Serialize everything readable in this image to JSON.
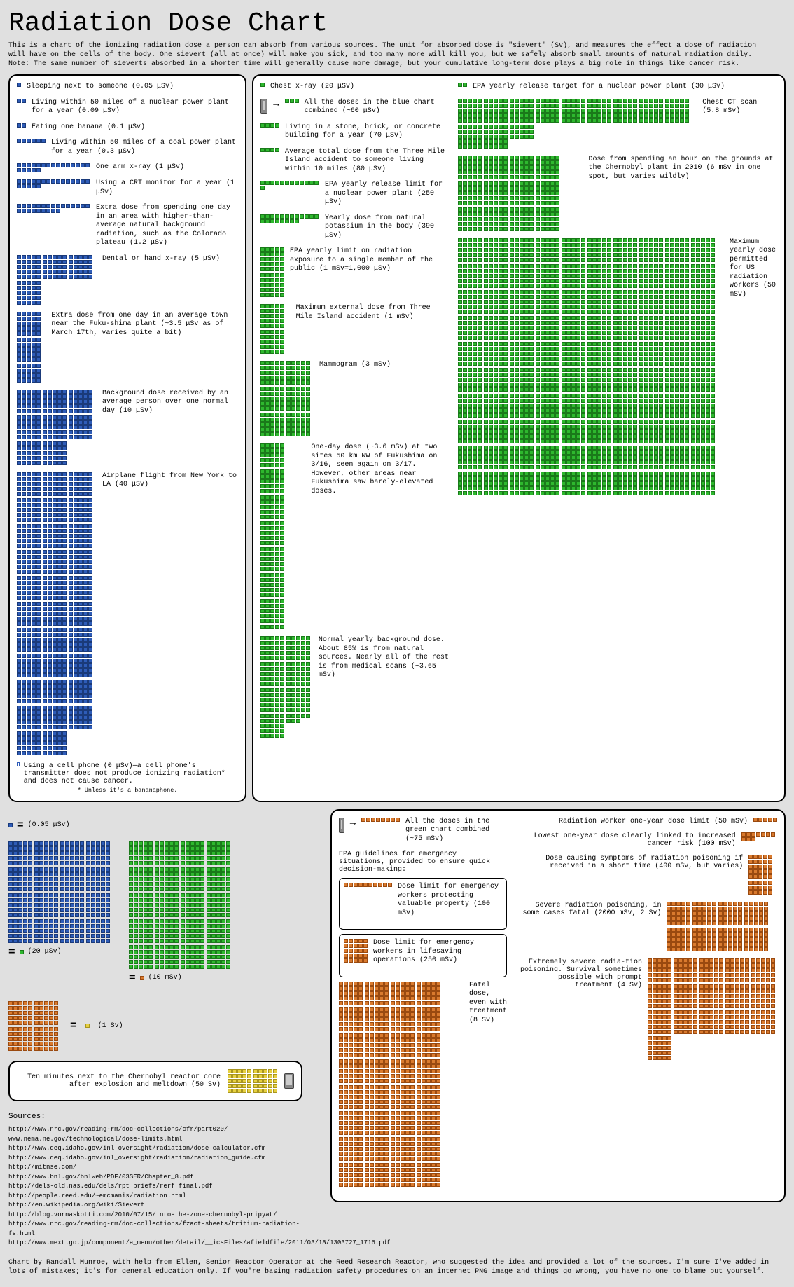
{
  "title": "Radiation Dose Chart",
  "intro": "This is a chart of the ionizing radiation dose a person can absorb from various sources. The unit for absorbed dose is \"sievert\" (Sv), and measures the effect a dose of radiation will have on the cells of the body. One sievert (all at once) will make you sick, and too many more will kill you, but we safely absorb small amounts of natural radiation daily. Note: The same number of sieverts absorbed in a shorter time will generally cause more damage, but your cumulative long-term dose plays a big role in things like cancer risk.",
  "colors": {
    "blue": "#2e5cb8",
    "green": "#2eb82e",
    "orange": "#d97a2e",
    "red": "#cc3333",
    "yellow": "#e6d040",
    "panel_bg": "#ffffff",
    "page_bg": "#e0e0e0",
    "border": "#000000"
  },
  "scale": {
    "blue_unit": "0.05 μSv",
    "green_unit": "20 μSv",
    "orange_unit": "10 mSv",
    "yellow_unit": "1 Sv"
  },
  "blue_items": [
    {
      "label": "Sleeping next to someone (0.05 μSv)",
      "squares": 1
    },
    {
      "label": "Living within 50 miles of a nuclear power plant for a year (0.09 μSv)",
      "squares": 2
    },
    {
      "label": "Eating one banana (0.1 μSv)",
      "squares": 2
    },
    {
      "label": "Living within 50 miles of a coal power plant for a year (0.3 μSv)",
      "squares": 6
    },
    {
      "label": "One arm x-ray (1 μSv)",
      "squares": 20
    },
    {
      "label": "Using a CRT monitor for a year (1 μSv)",
      "squares": 20
    },
    {
      "label": "Extra dose from spending one day in an area with higher-than-average natural background radiation, such as the Colorado plateau (1.2 μSv)",
      "squares": 24
    },
    {
      "label": "Dental or hand x-ray (5 μSv)",
      "squares": 100
    },
    {
      "label": "Extra dose from one day in an average town near the Fuku-shima plant (~3.5 μSv as of March 17th, varies quite a bit)",
      "squares": 70
    },
    {
      "label": "Background dose received by an average person over one normal day (10 μSv)",
      "squares": 200
    },
    {
      "label": "Airplane flight from New York to LA (40 μSv)",
      "squares": 800
    }
  ],
  "blue_cell": "Using a cell phone (0 μSv)—a cell phone's transmitter does not produce ionizing radiation* and does not cause cancer.",
  "blue_cell_note": "* Unless it's a bananaphone.",
  "green_items_left": [
    {
      "label": "Chest x-ray (20 μSv)",
      "squares": 1
    },
    {
      "label": "All the doses in the blue chart combined (~60 μSv)",
      "squares": 3,
      "has_phone": true
    },
    {
      "label": "Living in a stone, brick, or concrete building for a year (70 μSv)",
      "squares": 4
    },
    {
      "label": "Average total dose from the Three Mile Island accident to someone living within 10 miles (80 μSv)",
      "squares": 4
    },
    {
      "label": "EPA yearly release limit for a nuclear power plant (250 μSv)",
      "squares": 13
    },
    {
      "label": "Yearly dose from natural potassium in the body (390 μSv)",
      "squares": 20
    },
    {
      "label": "EPA yearly limit on radiation exposure to a single member of the public (1 mSv=1,000 μSv)",
      "squares": 50
    },
    {
      "label": "Maximum external dose from Three Mile Island accident (1 mSv)",
      "squares": 50
    },
    {
      "label": "Mammogram (3 mSv)",
      "squares": 150
    },
    {
      "label": "One-day dose (~3.6 mSv) at two sites 50 km NW of Fukushima on 3/16, seen again on 3/17. However, other areas near Fukushima saw barely-elevated doses.",
      "squares": 180
    },
    {
      "label": "Normal yearly background dose. About 85% is from natural sources. Nearly all of the rest is from medical scans (~3.65 mSv)",
      "squares": 183
    }
  ],
  "green_items_right": [
    {
      "label": "EPA yearly release target for a nuclear power plant (30 μSv)",
      "squares": 2
    },
    {
      "label": "Chest CT scan (5.8 mSv)",
      "squares": 290
    },
    {
      "label": "Dose from spending an hour on the grounds at the Chernobyl plant in 2010 (6 mSv in one spot, but varies wildly)",
      "squares": 300
    },
    {
      "label": "Maximum yearly dose permitted for US radiation workers (50 mSv)",
      "squares": 2500
    }
  ],
  "orange_items_left": [
    {
      "label": "All the doses in the green chart combined (~75 mSv)",
      "squares": 8,
      "has_phone": true
    },
    {
      "label_pre": "EPA guidelines for emergency situations, provided to ensure quick decision-making:"
    },
    {
      "label": "Dose limit for emergency workers protecting valuable property (100 mSv)",
      "squares": 10,
      "boxed": true
    },
    {
      "label": "Dose limit for emergency workers in lifesaving operations (250 mSv)",
      "squares": 25,
      "boxed": true
    },
    {
      "label": "Fatal dose, even with treatment (8 Sv)",
      "squares": 800
    }
  ],
  "orange_items_right": [
    {
      "label": "Radiation worker one-year dose limit (50 mSv)",
      "squares": 5
    },
    {
      "label": "Lowest one-year dose clearly linked to increased cancer risk (100 mSv)",
      "squares": 10
    },
    {
      "label": "Dose causing symptoms of radiation poisoning if received in a short time (400 mSv, but varies)",
      "squares": 40
    },
    {
      "label": "Severe radiation poisoning, in some cases fatal (2000 mSv, 2 Sv)",
      "squares": 200
    },
    {
      "label": "Extremely severe radia-tion poisoning. Survival sometimes possible with prompt treatment (4 Sv)",
      "squares": 400
    }
  ],
  "chernobyl": "Ten minutes next to the Chernobyl reactor core after explosion and meltdown (50 Sv)",
  "chernobyl_squares": 50,
  "legend": {
    "l1": "(0.05 μSv)",
    "l2": "(20 μSv)",
    "l3": "(10 mSv)",
    "l4": "(1 Sv)"
  },
  "sources_title": "Sources:",
  "sources": [
    "http://www.nrc.gov/reading-rm/doc-collections/cfr/part020/",
    "www.nema.ne.gov/technological/dose-limits.html",
    "http://www.deq.idaho.gov/inl_oversight/radiation/dose_calculator.cfm",
    "http://www.deq.idaho.gov/inl_oversight/radiation/radiation_guide.cfm",
    "http://mitnse.com/",
    "http://www.bnl.gov/bnlweb/PDF/03SER/Chapter_8.pdf",
    "http://dels-old.nas.edu/dels/rpt_briefs/rerf_final.pdf",
    "http://people.reed.edu/~emcmanis/radiation.html",
    "http://en.wikipedia.org/wiki/Sievert",
    "http://blog.vornaskotti.com/2010/07/15/into-the-zone-chernobyl-pripyat/",
    "http://www.nrc.gov/reading-rm/doc-collections/fzact-sheets/tritium-radiation-fs.html",
    "http://www.mext.go.jp/component/a_menu/other/detail/__icsFiles/afieldfile/2011/03/18/1303727_1716.pdf"
  ],
  "credit": "Chart by Randall Munroe, with help from Ellen, Senior Reactor Operator at the Reed Research Reactor, who suggested the idea and provided a lot of the sources. I'm sure I've added in lots of mistakes; it's for general education only. If you're basing radiation safety procedures on an internet PNG image and things go wrong, you have no one to blame but yourself."
}
